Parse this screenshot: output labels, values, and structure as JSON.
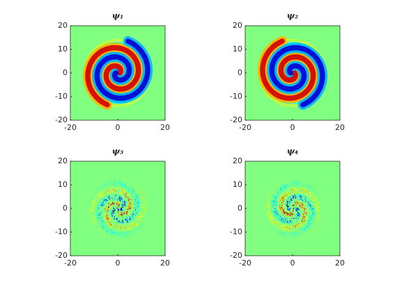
{
  "chart_data": [
    {
      "type": "heatmap",
      "title": "ψ₁",
      "xlim": [
        -20,
        20
      ],
      "ylim": [
        -20,
        20
      ],
      "xticks": [
        -20,
        0,
        20
      ],
      "yticks": [
        -20,
        -10,
        0,
        10,
        20
      ]
    },
    {
      "type": "heatmap",
      "title": "ψ₂",
      "xlim": [
        -20,
        20
      ],
      "ylim": [
        -20,
        20
      ],
      "xticks": [
        -20,
        0,
        20
      ],
      "yticks": [
        -20,
        -10,
        0,
        10,
        20
      ]
    },
    {
      "type": "heatmap",
      "title": "ψ₃",
      "xlim": [
        -20,
        20
      ],
      "ylim": [
        -20,
        20
      ],
      "xticks": [
        -20,
        0,
        20
      ],
      "yticks": [
        -20,
        -10,
        0,
        10,
        20
      ]
    },
    {
      "type": "heatmap",
      "title": "ψ₄",
      "xlim": [
        -20,
        20
      ],
      "ylim": [
        -20,
        20
      ],
      "xticks": [
        -20,
        0,
        20
      ],
      "yticks": [
        -20,
        -10,
        0,
        10,
        20
      ]
    }
  ]
}
